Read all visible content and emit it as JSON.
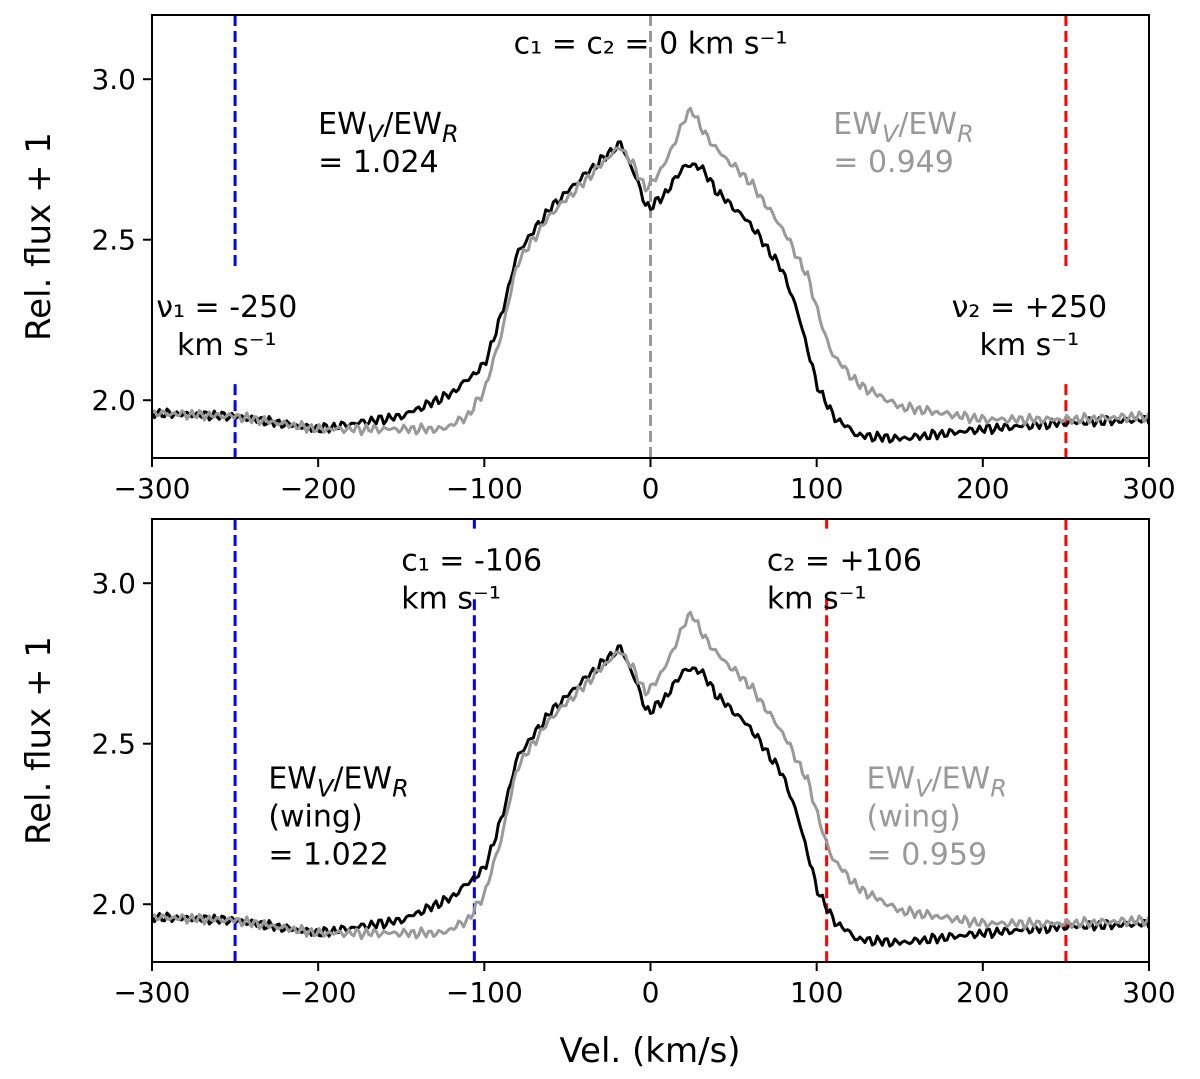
{
  "chart_data": [
    {
      "type": "line",
      "panel": "top",
      "xlabel": "",
      "ylabel": "Rel. flux + 1",
      "xlim": [
        -300,
        300
      ],
      "ylim": [
        1.82,
        3.2
      ],
      "x_ticks": [
        -300,
        -200,
        -100,
        0,
        100,
        200,
        300
      ],
      "x_tick_labels": [
        "−300",
        "−200",
        "−100",
        "0",
        "100",
        "200",
        "300"
      ],
      "y_ticks": [
        2.0,
        2.5,
        3.0
      ],
      "y_tick_labels": [
        "2.0",
        "2.5",
        "3.0"
      ],
      "series": [
        {
          "name": "black profile",
          "color": "#000000",
          "x": [
            -300,
            -250,
            -200,
            -150,
            -120,
            -100,
            -90,
            -80,
            -60,
            -40,
            -25,
            -18,
            -10,
            -3,
            0,
            10,
            20,
            30,
            40,
            60,
            80,
            90,
            100,
            110,
            125,
            150,
            200,
            250,
            300
          ],
          "y": [
            1.96,
            1.95,
            1.91,
            1.95,
            2.02,
            2.11,
            2.26,
            2.46,
            2.6,
            2.7,
            2.77,
            2.8,
            2.71,
            2.61,
            2.6,
            2.65,
            2.73,
            2.73,
            2.65,
            2.55,
            2.4,
            2.25,
            2.05,
            1.95,
            1.89,
            1.88,
            1.91,
            1.93,
            1.94
          ]
        },
        {
          "name": "grey profile",
          "color": "#999999",
          "x": [
            -300,
            -250,
            -200,
            -150,
            -125,
            -110,
            -100,
            -90,
            -80,
            -60,
            -40,
            -25,
            -18,
            -10,
            -3,
            0,
            10,
            20,
            25,
            30,
            40,
            60,
            80,
            95,
            105,
            110,
            125,
            150,
            200,
            250,
            300
          ],
          "y": [
            1.96,
            1.95,
            1.91,
            1.91,
            1.91,
            1.95,
            2.03,
            2.2,
            2.43,
            2.58,
            2.68,
            2.76,
            2.79,
            2.73,
            2.66,
            2.67,
            2.75,
            2.87,
            2.91,
            2.85,
            2.78,
            2.68,
            2.53,
            2.38,
            2.2,
            2.14,
            2.05,
            1.98,
            1.94,
            1.94,
            1.95
          ]
        }
      ],
      "vlines": [
        {
          "x": -250,
          "color": "#0000ff",
          "gap": [
            2.05,
            2.41
          ]
        },
        {
          "x": 250,
          "color": "#ff0000",
          "gap": [
            2.05,
            2.41
          ]
        },
        {
          "x": 0,
          "color": "#999999"
        }
      ],
      "annotations": [
        {
          "lines": [
            "c₁ = c₂ = 0 km s⁻¹"
          ],
          "color": "#000000",
          "x": 0,
          "y": 3.08,
          "align": "center"
        },
        {
          "lines": [
            "EWV/EWR",
            "= 1.024"
          ],
          "color": "#000000",
          "x": -200,
          "y": 2.83,
          "align": "left"
        },
        {
          "lines": [
            "EWV/EWR",
            "= 0.949"
          ],
          "color": "#999999",
          "x": 110,
          "y": 2.83,
          "align": "left"
        },
        {
          "lines": [
            "ν₁ = -250",
            "km s⁻¹"
          ],
          "color": "#000000",
          "x": -255,
          "y": 2.26,
          "align": "center"
        },
        {
          "lines": [
            "ν₂ = +250",
            "km s⁻¹"
          ],
          "color": "#000000",
          "x": 228,
          "y": 2.26,
          "align": "center"
        }
      ]
    },
    {
      "type": "line",
      "panel": "bottom",
      "xlabel": "Vel. (km/s)",
      "ylabel": "Rel. flux + 1",
      "xlim": [
        -300,
        300
      ],
      "ylim": [
        1.82,
        3.2
      ],
      "x_ticks": [
        -300,
        -200,
        -100,
        0,
        100,
        200,
        300
      ],
      "x_tick_labels": [
        "−300",
        "−200",
        "−100",
        "0",
        "100",
        "200",
        "300"
      ],
      "y_ticks": [
        2.0,
        2.5,
        3.0
      ],
      "y_tick_labels": [
        "2.0",
        "2.5",
        "3.0"
      ],
      "series": [
        {
          "name": "black profile",
          "color": "#000000",
          "x": [
            -300,
            -250,
            -200,
            -150,
            -120,
            -100,
            -90,
            -80,
            -60,
            -40,
            -25,
            -18,
            -10,
            -3,
            0,
            10,
            20,
            30,
            40,
            60,
            80,
            90,
            100,
            110,
            125,
            150,
            200,
            250,
            300
          ],
          "y": [
            1.96,
            1.95,
            1.91,
            1.95,
            2.02,
            2.11,
            2.26,
            2.46,
            2.6,
            2.7,
            2.77,
            2.8,
            2.71,
            2.61,
            2.6,
            2.65,
            2.73,
            2.73,
            2.65,
            2.55,
            2.4,
            2.25,
            2.05,
            1.95,
            1.89,
            1.88,
            1.91,
            1.93,
            1.94
          ]
        },
        {
          "name": "grey profile",
          "color": "#999999",
          "x": [
            -300,
            -250,
            -200,
            -150,
            -125,
            -110,
            -100,
            -90,
            -80,
            -60,
            -40,
            -25,
            -18,
            -10,
            -3,
            0,
            10,
            20,
            25,
            30,
            40,
            60,
            80,
            95,
            105,
            110,
            125,
            150,
            200,
            250,
            300
          ],
          "y": [
            1.96,
            1.95,
            1.91,
            1.91,
            1.91,
            1.95,
            2.03,
            2.2,
            2.43,
            2.58,
            2.68,
            2.76,
            2.79,
            2.73,
            2.66,
            2.67,
            2.75,
            2.87,
            2.91,
            2.85,
            2.78,
            2.68,
            2.53,
            2.38,
            2.2,
            2.14,
            2.05,
            1.98,
            1.94,
            1.94,
            1.95
          ]
        }
      ],
      "vlines": [
        {
          "x": -250,
          "color": "#0000ff"
        },
        {
          "x": 250,
          "color": "#ff0000"
        },
        {
          "x": -106,
          "color": "#0000ff",
          "gap": [
            2.95,
            3.17
          ]
        },
        {
          "x": 106,
          "color": "#ff0000",
          "gap": [
            2.95,
            3.17
          ]
        }
      ],
      "annotations": [
        {
          "lines": [
            "c₁ = -106",
            "km s⁻¹"
          ],
          "color": "#000000",
          "x": -150,
          "y": 3.04,
          "align": "left"
        },
        {
          "lines": [
            "c₂ = +106",
            "km s⁻¹"
          ],
          "color": "#000000",
          "x": 70,
          "y": 3.04,
          "align": "left"
        },
        {
          "lines": [
            "EWV/EWR",
            "(wing)",
            "= 1.022"
          ],
          "color": "#000000",
          "x": -230,
          "y": 2.36,
          "align": "left"
        },
        {
          "lines": [
            "EWV/EWR",
            "(wing)",
            "= 0.959"
          ],
          "color": "#999999",
          "x": 130,
          "y": 2.36,
          "align": "left"
        }
      ]
    }
  ]
}
